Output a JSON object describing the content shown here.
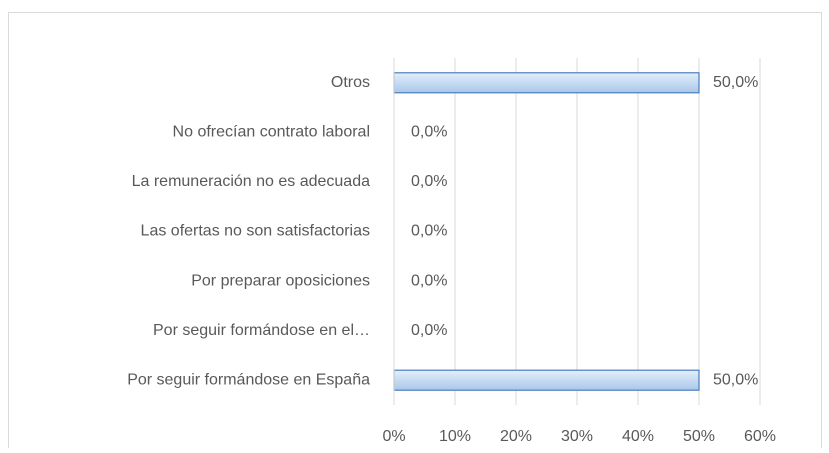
{
  "chart_data": {
    "type": "bar",
    "orientation": "horizontal",
    "categories": [
      "Otros",
      "No ofrecían contrato laboral",
      "La remuneración no es adecuada",
      "Las ofertas no son satisfactorias",
      "Por preparar oposiciones",
      "Por seguir formándose en el…",
      "Por seguir formándose en España"
    ],
    "values": [
      50,
      0,
      0,
      0,
      0,
      0,
      50
    ],
    "value_labels": [
      "50,0%",
      "0,0%",
      "0,0%",
      "0,0%",
      "0,0%",
      "0,0%",
      "50,0%"
    ],
    "color": "#bdd7ee",
    "xlim": [
      0,
      60
    ],
    "xticks": [
      {
        "value": 0,
        "label": "0%"
      },
      {
        "value": 10,
        "label": "10%"
      },
      {
        "value": 20,
        "label": "20%"
      },
      {
        "value": 30,
        "label": "30%"
      },
      {
        "value": 40,
        "label": "40%"
      },
      {
        "value": 50,
        "label": "50%"
      },
      {
        "value": 60,
        "label": "60%"
      }
    ],
    "grid": true
  }
}
